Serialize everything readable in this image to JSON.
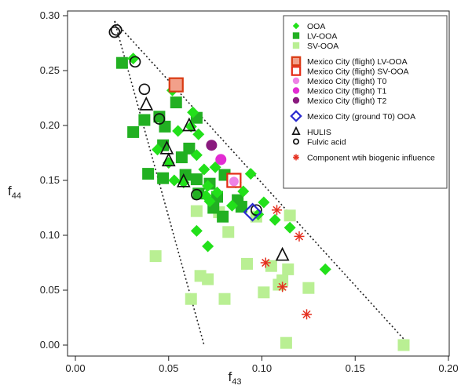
{
  "chart_data": {
    "type": "scatter",
    "xlabel": "f",
    "xlabel_sub": "43",
    "ylabel": "f",
    "ylabel_sub": "44",
    "xlim": [
      0,
      0.2
    ],
    "ylim": [
      0,
      0.3
    ],
    "x_ticks": [
      "0.00",
      "0.05",
      "0.10",
      "0.15",
      "0.20"
    ],
    "y_ticks": [
      "0.00",
      "0.05",
      "0.10",
      "0.15",
      "0.20",
      "0.25",
      "0.30"
    ],
    "grid": false,
    "legend_position": "top-right",
    "colors": {
      "OOA": "#22e01a",
      "LV-OOA": "#22b022",
      "SV-OOA": "#b9ef93",
      "flight LV-OOA": "#d93a12",
      "flight SV-OOA": "#e42a14",
      "T0": "#ee82e6",
      "T1": "#e22cd2",
      "T2": "#8a1a7e",
      "ground T0": "#2a2ad0",
      "biogenic": "#e53020"
    },
    "triangle_guides": [
      {
        "from": [
          0.021,
          0.295
        ],
        "to": [
          0.069,
          0.0
        ]
      },
      {
        "from": [
          0.021,
          0.295
        ],
        "to": [
          0.179,
          0.0
        ]
      }
    ],
    "series": [
      {
        "name": "OOA",
        "marker": "diamond",
        "points": [
          [
            0.031,
            0.261
          ],
          [
            0.052,
            0.232
          ],
          [
            0.063,
            0.212
          ],
          [
            0.055,
            0.195
          ],
          [
            0.062,
            0.199
          ],
          [
            0.066,
            0.192
          ],
          [
            0.044,
            0.178
          ],
          [
            0.05,
            0.166
          ],
          [
            0.053,
            0.15
          ],
          [
            0.058,
            0.148
          ],
          [
            0.065,
            0.173
          ],
          [
            0.069,
            0.16
          ],
          [
            0.075,
            0.162
          ],
          [
            0.071,
            0.145
          ],
          [
            0.07,
            0.136
          ],
          [
            0.072,
            0.131
          ],
          [
            0.076,
            0.139
          ],
          [
            0.084,
            0.127
          ],
          [
            0.086,
            0.148
          ],
          [
            0.094,
            0.156
          ],
          [
            0.09,
            0.14
          ],
          [
            0.098,
            0.119
          ],
          [
            0.101,
            0.13
          ],
          [
            0.107,
            0.114
          ],
          [
            0.115,
            0.107
          ],
          [
            0.065,
            0.104
          ],
          [
            0.071,
            0.09
          ],
          [
            0.134,
            0.069
          ]
        ]
      },
      {
        "name": "LV-OOA",
        "marker": "square",
        "points": [
          [
            0.025,
            0.257
          ],
          [
            0.045,
            0.208
          ],
          [
            0.048,
            0.199
          ],
          [
            0.037,
            0.205
          ],
          [
            0.031,
            0.194
          ],
          [
            0.054,
            0.221
          ],
          [
            0.065,
            0.207
          ],
          [
            0.047,
            0.182
          ],
          [
            0.057,
            0.171
          ],
          [
            0.061,
            0.179
          ],
          [
            0.039,
            0.156
          ],
          [
            0.047,
            0.152
          ],
          [
            0.059,
            0.155
          ],
          [
            0.065,
            0.151
          ],
          [
            0.066,
            0.138
          ],
          [
            0.072,
            0.147
          ],
          [
            0.08,
            0.155
          ],
          [
            0.076,
            0.135
          ],
          [
            0.074,
            0.125
          ],
          [
            0.079,
            0.117
          ],
          [
            0.087,
            0.132
          ],
          [
            0.089,
            0.126
          ]
        ]
      },
      {
        "name": "SV-OOA",
        "marker": "square",
        "points": [
          [
            0.043,
            0.081
          ],
          [
            0.062,
            0.042
          ],
          [
            0.071,
            0.06
          ],
          [
            0.067,
            0.063
          ],
          [
            0.065,
            0.122
          ],
          [
            0.077,
            0.121
          ],
          [
            0.082,
            0.103
          ],
          [
            0.08,
            0.042
          ],
          [
            0.092,
            0.074
          ],
          [
            0.097,
            0.117
          ],
          [
            0.101,
            0.048
          ],
          [
            0.105,
            0.072
          ],
          [
            0.109,
            0.055
          ],
          [
            0.111,
            0.059
          ],
          [
            0.114,
            0.069
          ],
          [
            0.115,
            0.118
          ],
          [
            0.125,
            0.052
          ],
          [
            0.113,
            0.002
          ],
          [
            0.176,
            0.0
          ]
        ]
      },
      {
        "name": "Mexico City (flight) LV-OOA",
        "marker": "square-open",
        "points": [
          [
            0.054,
            0.237
          ]
        ]
      },
      {
        "name": "Mexico City (flight) SV-OOA",
        "marker": "square-open",
        "points": [
          [
            0.085,
            0.15
          ]
        ]
      },
      {
        "name": "Mexico City (flight) T0",
        "marker": "circle",
        "points": [
          [
            0.085,
            0.149
          ]
        ]
      },
      {
        "name": "Mexico City (flight) T1",
        "marker": "circle",
        "points": [
          [
            0.078,
            0.169
          ]
        ]
      },
      {
        "name": "Mexico City (flight) T2",
        "marker": "circle",
        "points": [
          [
            0.073,
            0.182
          ]
        ]
      },
      {
        "name": "Mexico City (ground T0)  OOA",
        "marker": "diamond-open",
        "points": [
          [
            0.095,
            0.121
          ]
        ]
      },
      {
        "name": "HULIS",
        "marker": "triangle-open",
        "points": [
          [
            0.038,
            0.219
          ],
          [
            0.061,
            0.2
          ],
          [
            0.049,
            0.179
          ],
          [
            0.05,
            0.168
          ],
          [
            0.058,
            0.149
          ],
          [
            0.111,
            0.082
          ]
        ]
      },
      {
        "name": "Fulvic acid",
        "marker": "circle-open",
        "points": [
          [
            0.021,
            0.285
          ],
          [
            0.022,
            0.287
          ],
          [
            0.032,
            0.258
          ],
          [
            0.037,
            0.233
          ],
          [
            0.045,
            0.206
          ],
          [
            0.065,
            0.137
          ],
          [
            0.097,
            0.123
          ]
        ]
      },
      {
        "name": "Component wtih biogenic influence",
        "marker": "asterisk",
        "points": [
          [
            0.108,
            0.123
          ],
          [
            0.12,
            0.099
          ],
          [
            0.102,
            0.075
          ],
          [
            0.111,
            0.053
          ],
          [
            0.124,
            0.028
          ]
        ]
      }
    ],
    "legend": [
      {
        "label": "OOA",
        "marker": "diamond",
        "color": "#22e01a"
      },
      {
        "label": "LV-OOA",
        "marker": "square",
        "color": "#22b022"
      },
      {
        "label": "SV-OOA",
        "marker": "square",
        "color": "#b9ef93"
      },
      {
        "label": "Mexico City (flight) LV-OOA",
        "marker": "square-open",
        "color": "#d93a12",
        "fill": "#f2a08a"
      },
      {
        "label": "Mexico City (flight) SV-OOA",
        "marker": "square-open",
        "color": "#e42a14",
        "fill": "#ffffff"
      },
      {
        "label": "Mexico City (flight) T0",
        "marker": "circle",
        "color": "#ee82e6"
      },
      {
        "label": "Mexico City (flight) T1",
        "marker": "circle",
        "color": "#e22cd2"
      },
      {
        "label": "Mexico City (flight) T2",
        "marker": "circle",
        "color": "#8a1a7e"
      },
      {
        "label": "Mexico City (ground T0)  OOA",
        "marker": "diamond-open",
        "color": "#2a2ad0"
      },
      {
        "label": "HULIS",
        "marker": "triangle-open",
        "color": "#111111"
      },
      {
        "label": "Fulvic acid",
        "marker": "circle-open",
        "color": "#111111"
      },
      {
        "label": "Component wtih biogenic influence",
        "marker": "asterisk",
        "color": "#e53020"
      }
    ]
  }
}
